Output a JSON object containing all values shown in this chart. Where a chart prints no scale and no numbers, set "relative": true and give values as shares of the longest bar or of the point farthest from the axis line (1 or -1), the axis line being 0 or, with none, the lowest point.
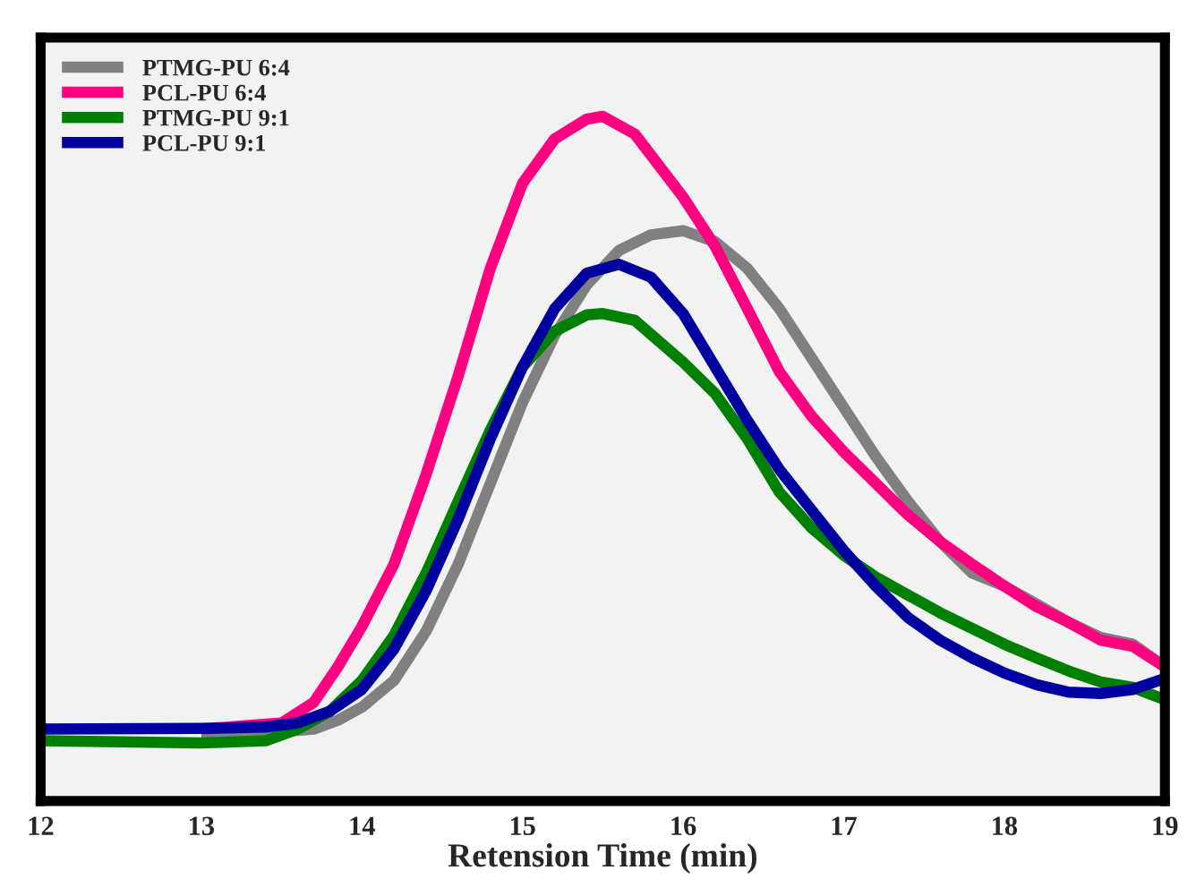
{
  "chart_data": {
    "type": "line",
    "xlabel": "Retension Time (min)",
    "relative": true,
    "xlim": [
      12,
      19
    ],
    "xticks": [
      12,
      13,
      14,
      15,
      16,
      17,
      18,
      19
    ],
    "legend": "top left",
    "tick_labels": "x",
    "line_style": "solid",
    "series": [
      {
        "name": "PTMG-PU 6:4",
        "color": "#808080",
        "x": [
          13,
          13.5,
          13.7,
          13.85,
          14,
          14.2,
          14.4,
          14.6,
          14.8,
          15,
          15.2,
          15.4,
          15.6,
          15.8,
          16,
          16.2,
          16.4,
          16.6,
          16.8,
          17,
          17.2,
          17.4,
          17.6,
          17.8,
          18,
          18.2,
          18.4,
          18.6,
          18.8,
          19
        ],
        "values": [
          0.101,
          0.101,
          0.105,
          0.118,
          0.137,
          0.176,
          0.248,
          0.346,
          0.464,
          0.582,
          0.68,
          0.754,
          0.804,
          0.827,
          0.833,
          0.817,
          0.778,
          0.719,
          0.647,
          0.575,
          0.503,
          0.438,
          0.379,
          0.333,
          0.314,
          0.288,
          0.261,
          0.239,
          0.229,
          0.196
        ]
      },
      {
        "name": "PCL-PU 6:4",
        "color": "#ff0080",
        "x": [
          13,
          13.5,
          13.7,
          13.85,
          14,
          14.2,
          14.4,
          14.6,
          14.8,
          15,
          15.2,
          15.4,
          15.5,
          15.7,
          16,
          16.2,
          16.4,
          16.6,
          16.8,
          17,
          17.2,
          17.4,
          17.6,
          17.8,
          18,
          18.2,
          18.4,
          18.6,
          18.8,
          19
        ],
        "values": [
          0.105,
          0.114,
          0.144,
          0.196,
          0.255,
          0.346,
          0.477,
          0.621,
          0.778,
          0.902,
          0.967,
          0.996,
          1.0,
          0.974,
          0.882,
          0.81,
          0.719,
          0.627,
          0.562,
          0.51,
          0.464,
          0.418,
          0.379,
          0.346,
          0.314,
          0.284,
          0.261,
          0.235,
          0.226,
          0.196
        ]
      },
      {
        "name": "PTMG-PU 9:1",
        "color": "#008000",
        "x": [
          12,
          13,
          13.4,
          13.6,
          13.8,
          14,
          14.2,
          14.4,
          14.6,
          14.8,
          15,
          15.2,
          15.4,
          15.5,
          15.7,
          16,
          16.2,
          16.4,
          16.6,
          16.8,
          17,
          17.2,
          17.4,
          17.6,
          17.8,
          18,
          18.2,
          18.4,
          18.6,
          18.8,
          19
        ],
        "values": [
          0.088,
          0.085,
          0.088,
          0.105,
          0.131,
          0.176,
          0.242,
          0.333,
          0.438,
          0.542,
          0.634,
          0.686,
          0.71,
          0.712,
          0.702,
          0.641,
          0.595,
          0.529,
          0.451,
          0.399,
          0.359,
          0.327,
          0.301,
          0.275,
          0.252,
          0.229,
          0.209,
          0.19,
          0.174,
          0.166,
          0.148
        ]
      },
      {
        "name": "PCL-PU 9:1",
        "color": "#0000a0",
        "x": [
          12,
          13,
          13.4,
          13.6,
          13.8,
          14,
          14.2,
          14.4,
          14.6,
          14.8,
          15,
          15.2,
          15.4,
          15.6,
          15.8,
          16,
          16.2,
          16.4,
          16.6,
          16.8,
          17,
          17.2,
          17.4,
          17.6,
          17.8,
          18,
          18.2,
          18.4,
          18.6,
          18.8,
          19
        ],
        "values": [
          0.105,
          0.106,
          0.108,
          0.114,
          0.131,
          0.163,
          0.222,
          0.307,
          0.412,
          0.529,
          0.634,
          0.719,
          0.771,
          0.784,
          0.765,
          0.712,
          0.634,
          0.556,
          0.484,
          0.425,
          0.366,
          0.314,
          0.268,
          0.235,
          0.209,
          0.187,
          0.17,
          0.159,
          0.157,
          0.163,
          0.179
        ]
      }
    ]
  }
}
